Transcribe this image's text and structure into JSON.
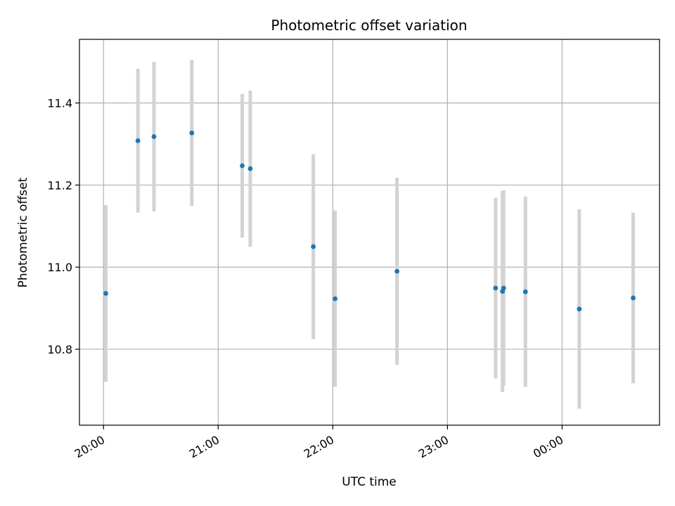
{
  "chart_data": {
    "type": "scatter",
    "title": "Photometric offset variation",
    "xlabel": "UTC time",
    "ylabel": "Photometric offset",
    "x_ticks": [
      "20:00",
      "21:00",
      "22:00",
      "23:00",
      "00:00"
    ],
    "x_tick_hours": [
      20.0,
      21.0,
      22.0,
      23.0,
      24.0
    ],
    "xlim": [
      19.79,
      24.85
    ],
    "y_ticks": [
      "10.8",
      "11.0",
      "11.2",
      "11.4"
    ],
    "y_tick_values": [
      10.8,
      11.0,
      11.2,
      11.4
    ],
    "ylim": [
      10.615,
      11.555
    ],
    "grid": true,
    "point_color": "#1f77b4",
    "errorbar_color": "#d3d3d3",
    "points": [
      {
        "hour": 20.02,
        "y": 10.936,
        "err": 0.215
      },
      {
        "hour": 20.3,
        "y": 11.308,
        "err": 0.175
      },
      {
        "hour": 20.44,
        "y": 11.318,
        "err": 0.182
      },
      {
        "hour": 20.77,
        "y": 11.327,
        "err": 0.178
      },
      {
        "hour": 21.21,
        "y": 11.247,
        "err": 0.175
      },
      {
        "hour": 21.28,
        "y": 11.24,
        "err": 0.19
      },
      {
        "hour": 21.83,
        "y": 11.05,
        "err": 0.225
      },
      {
        "hour": 22.02,
        "y": 10.923,
        "err": 0.215
      },
      {
        "hour": 22.56,
        "y": 10.99,
        "err": 0.228
      },
      {
        "hour": 23.42,
        "y": 10.949,
        "err": 0.22
      },
      {
        "hour": 23.48,
        "y": 10.941,
        "err": 0.245
      },
      {
        "hour": 23.49,
        "y": 10.949,
        "err": 0.238
      },
      {
        "hour": 23.68,
        "y": 10.94,
        "err": 0.232
      },
      {
        "hour": 24.15,
        "y": 10.898,
        "err": 0.243
      },
      {
        "hour": 24.62,
        "y": 10.925,
        "err": 0.208
      }
    ]
  }
}
